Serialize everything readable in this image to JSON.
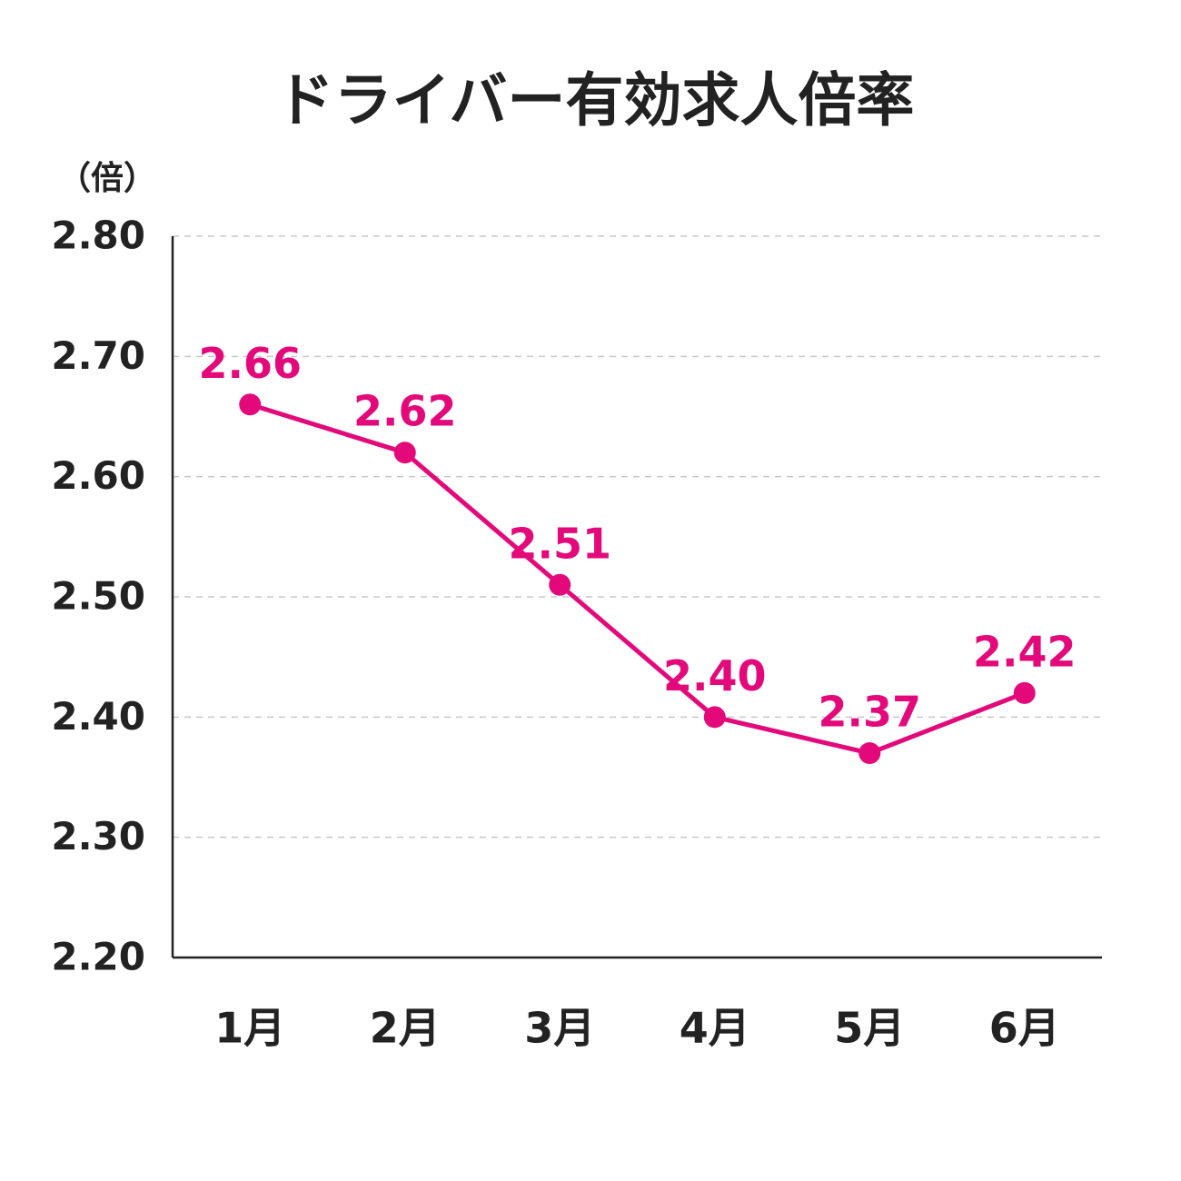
{
  "chart_data": {
    "type": "line",
    "title": "ドライバー有効求人倍率",
    "y_label": "（倍）",
    "categories": [
      "1月",
      "2月",
      "3月",
      "4月",
      "5月",
      "6月"
    ],
    "values": [
      2.66,
      2.62,
      2.51,
      2.4,
      2.37,
      2.42
    ],
    "value_labels": [
      "2.66",
      "2.62",
      "2.51",
      "2.40",
      "2.37",
      "2.42"
    ],
    "color": "#e4097a",
    "ylim": [
      2.2,
      2.8
    ],
    "yticks": [
      {
        "value": 2.2,
        "label": "2.20"
      },
      {
        "value": 2.3,
        "label": "2.30"
      },
      {
        "value": 2.4,
        "label": "2.40"
      },
      {
        "value": 2.5,
        "label": "2.50"
      },
      {
        "value": 2.6,
        "label": "2.60"
      },
      {
        "value": 2.7,
        "label": "2.70"
      },
      {
        "value": 2.8,
        "label": "2.80"
      }
    ],
    "grid": true
  }
}
